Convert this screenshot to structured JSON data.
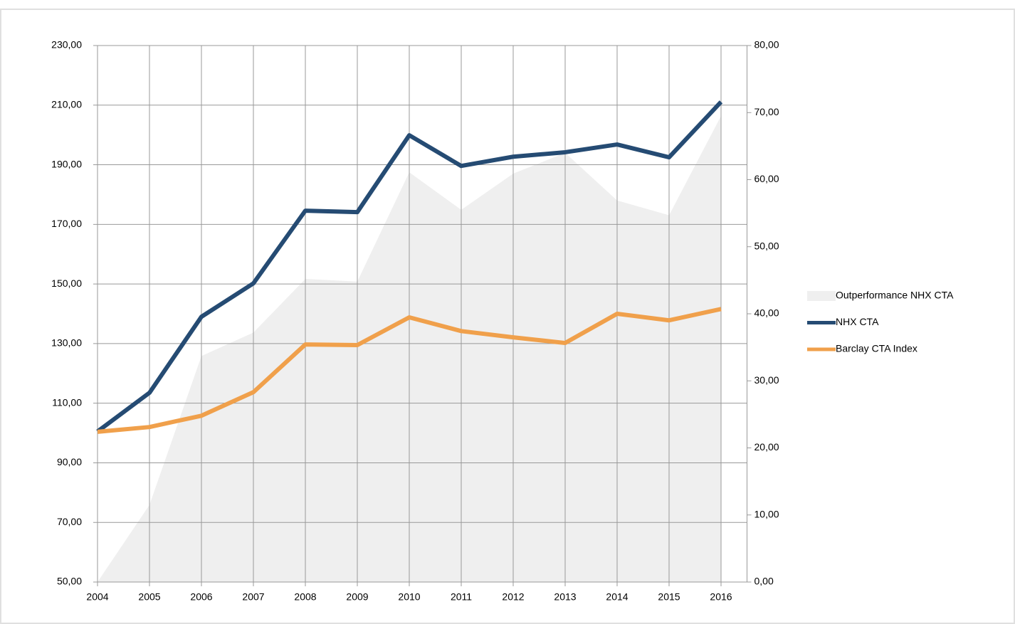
{
  "chart_data": {
    "type": "line",
    "categories": [
      "2004",
      "2005",
      "2006",
      "2007",
      "2008",
      "2009",
      "2010",
      "2011",
      "2012",
      "2013",
      "2014",
      "2015",
      "2016"
    ],
    "series": [
      {
        "name": "Outperformance NHX CTA",
        "color": "#efefef",
        "kind": "area",
        "axis": "y2",
        "values": [
          0,
          11.5,
          33.7,
          37.2,
          45.2,
          44.8,
          61.1,
          55.5,
          60.9,
          64,
          56.9,
          54.7,
          69.5
        ]
      },
      {
        "name": "NHX CTA",
        "color": "#254b73",
        "kind": "line",
        "values": [
          100.5,
          113.5,
          139,
          150.2,
          174.6,
          174.1,
          199.9,
          189.6,
          192.7,
          194.2,
          196.8,
          192.5,
          211.1
        ]
      },
      {
        "name": "Barclay CTA Index",
        "color": "#f0a04b",
        "kind": "line",
        "values": [
          100.4,
          102,
          105.8,
          113.7,
          129.7,
          129.5,
          138.8,
          134.2,
          132.1,
          130.2,
          140,
          137.8,
          141.6
        ]
      }
    ],
    "ylim": [
      50,
      230
    ],
    "yticks": [
      {
        "value": 50,
        "label": "50,00"
      },
      {
        "value": 70,
        "label": "70,00"
      },
      {
        "value": 90,
        "label": "90,00"
      },
      {
        "value": 110,
        "label": "110,00"
      },
      {
        "value": 130,
        "label": "130,00"
      },
      {
        "value": 150,
        "label": "150,00"
      },
      {
        "value": 170,
        "label": "170,00"
      },
      {
        "value": 190,
        "label": "190,00"
      },
      {
        "value": 210,
        "label": "210,00"
      },
      {
        "value": 230,
        "label": "230,00"
      }
    ],
    "y2lim": [
      0,
      80
    ],
    "y2ticks": [
      {
        "value": 0,
        "label": "0,00"
      },
      {
        "value": 10,
        "label": "10,00"
      },
      {
        "value": 20,
        "label": "20,00"
      },
      {
        "value": 30,
        "label": "30,00"
      },
      {
        "value": 40,
        "label": "40,00"
      },
      {
        "value": 50,
        "label": "50,00"
      },
      {
        "value": 60,
        "label": "60,00"
      },
      {
        "value": 70,
        "label": "70,00"
      },
      {
        "value": 80,
        "label": "80,00"
      }
    ],
    "grid": true,
    "legend": "right"
  }
}
